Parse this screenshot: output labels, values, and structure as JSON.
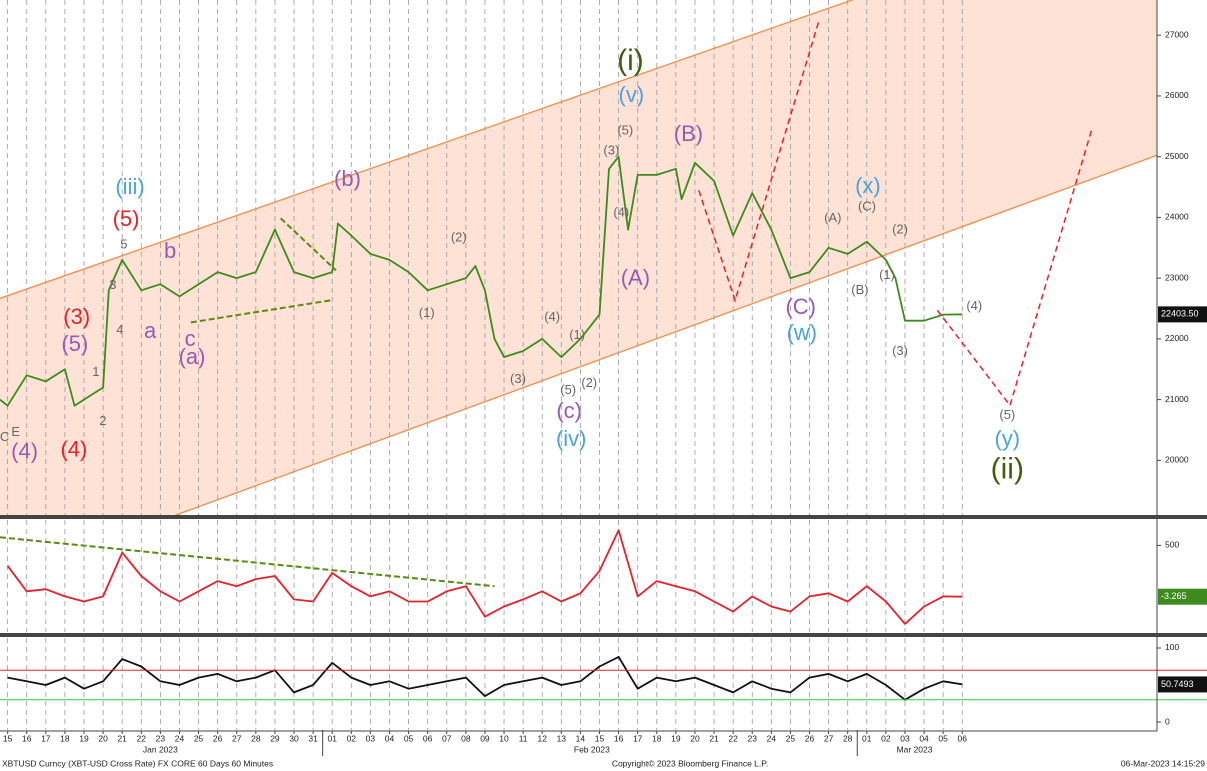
{
  "chart_data": [
    {
      "type": "line",
      "xlim": [
        -0.4,
        60.2
      ],
      "ylim": [
        19100,
        27580
      ],
      "yticks": [
        20000,
        21000,
        22000,
        23000,
        24000,
        25000,
        26000,
        27000
      ],
      "grid": true,
      "series": [
        {
          "color": "#3d8b1f",
          "x": [
            -0.4,
            0,
            1,
            2,
            3,
            3.5,
            4,
            5,
            5.3,
            6,
            7,
            8,
            9,
            10,
            11,
            12,
            13,
            14,
            15,
            16,
            17,
            17.3,
            18,
            19,
            20,
            21,
            22,
            23,
            24,
            24.5,
            25,
            25.5,
            26,
            27,
            28,
            29,
            30,
            31,
            31.5,
            32,
            32.5,
            33,
            34,
            35,
            35.3,
            36,
            37,
            38,
            39,
            40,
            41,
            42,
            43,
            44,
            45,
            46,
            46.5,
            47,
            48,
            49,
            50
          ],
          "values": [
            21000,
            20900,
            21400,
            21300,
            21500,
            20900,
            21000,
            21200,
            22800,
            23300,
            22800,
            22900,
            22700,
            22900,
            23100,
            23000,
            23100,
            23800,
            23100,
            23000,
            23100,
            23900,
            23700,
            23400,
            23300,
            23100,
            22800,
            22900,
            23000,
            23200,
            22800,
            22000,
            21700,
            21800,
            22000,
            21700,
            22000,
            22400,
            24800,
            25000,
            23800,
            24700,
            24700,
            24800,
            24300,
            24900,
            24600,
            23700,
            24400,
            23800,
            23000,
            23100,
            23500,
            23400,
            23600,
            23300,
            23000,
            22300,
            22300,
            22400,
            22403.5
          ]
        }
      ],
      "last_label": {
        "value": 22403.5,
        "label": "22403.50"
      },
      "channel": {
        "color": "#f28c4a",
        "fill": "#fde2d5",
        "lines": [
          {
            "x": [
              -0.4,
              44.2
            ],
            "y": [
              22667,
              27577
            ]
          },
          {
            "x": [
              8.77,
              60.2
            ],
            "y": [
              19094,
              25023
            ]
          }
        ]
      },
      "projections": [
        {
          "color": "#e8202a",
          "x": [
            36.2,
            38.1,
            42.5
          ],
          "y": [
            24446,
            22634,
            27247
          ]
        },
        {
          "color": "#e8202a",
          "x": [
            48.7,
            52.5,
            56.8
          ],
          "y": [
            22470,
            20904,
            25468
          ]
        }
      ],
      "trend_lines": [
        {
          "color": "#5a8a10",
          "x": [
            9.6,
            16.9
          ],
          "y": [
            22272,
            22634
          ]
        },
        {
          "color": "#5a8a10",
          "x": [
            14.3,
            17.2
          ],
          "y": [
            23985,
            23128
          ]
        }
      ],
      "annotations": [
        {
          "text": "(iii)",
          "x": 6.41,
          "y": 24480,
          "color": "#4aa3df"
        },
        {
          "text": "(5)",
          "x": 6.2,
          "y": 23953,
          "color": "#e8202a"
        },
        {
          "text": "5",
          "x": 6.09,
          "y": 23541,
          "color": "#666666"
        },
        {
          "text": "3",
          "x": 5.51,
          "y": 22882,
          "color": "#666666"
        },
        {
          "text": "4",
          "x": 5.88,
          "y": 22140,
          "color": "#666666"
        },
        {
          "text": "1",
          "x": 4.62,
          "y": 21448,
          "color": "#666666"
        },
        {
          "text": "2",
          "x": 4.99,
          "y": 20641,
          "color": "#666666"
        },
        {
          "text": "(3)",
          "x": 3.62,
          "y": 22338,
          "color": "#e8202a"
        },
        {
          "text": "(5)",
          "x": 3.52,
          "y": 21893,
          "color": "#9b59b6"
        },
        {
          "text": "(4)",
          "x": 3.47,
          "y": 20163,
          "color": "#e8202a"
        },
        {
          "text": "(4)",
          "x": 0.89,
          "y": 20130,
          "color": "#9b59b6"
        },
        {
          "text": "C",
          "x": -0.16,
          "y": 20377,
          "color": "#666666"
        },
        {
          "text": "E",
          "x": 0.42,
          "y": 20460,
          "color": "#666666"
        },
        {
          "text": "b",
          "x": 8.51,
          "y": 23425,
          "color": "#9b59b6"
        },
        {
          "text": "a",
          "x": 7.46,
          "y": 22107,
          "color": "#9b59b6"
        },
        {
          "text": "c",
          "x": 9.56,
          "y": 21976,
          "color": "#9b59b6"
        },
        {
          "text": "(a)",
          "x": 9.66,
          "y": 21679,
          "color": "#9b59b6"
        },
        {
          "text": "(b)",
          "x": 17.8,
          "y": 24611,
          "color": "#9b59b6"
        },
        {
          "text": "(1)",
          "x": 21.95,
          "y": 22420,
          "color": "#666666"
        },
        {
          "text": "(2)",
          "x": 23.63,
          "y": 23656,
          "color": "#666666"
        },
        {
          "text": "(3)",
          "x": 26.73,
          "y": 21333,
          "color": "#666666"
        },
        {
          "text": "(4)",
          "x": 28.52,
          "y": 22354,
          "color": "#666666"
        },
        {
          "text": "(1)",
          "x": 29.83,
          "y": 22058,
          "color": "#666666"
        },
        {
          "text": "(5)",
          "x": 29.36,
          "y": 21152,
          "color": "#666666"
        },
        {
          "text": "(2)",
          "x": 30.46,
          "y": 21267,
          "color": "#666666"
        },
        {
          "text": "(c)",
          "x": 29.41,
          "y": 20789,
          "color": "#9b59b6"
        },
        {
          "text": "(iv)",
          "x": 29.52,
          "y": 20328,
          "color": "#4aa3df"
        },
        {
          "text": "(3)",
          "x": 31.62,
          "y": 25089,
          "color": "#666666"
        },
        {
          "text": "(4)",
          "x": 32.14,
          "y": 24068,
          "color": "#666666"
        },
        {
          "text": "(5)",
          "x": 32.35,
          "y": 25418,
          "color": "#666666"
        },
        {
          "text": "(v)",
          "x": 32.67,
          "y": 25995,
          "color": "#4aa3df"
        },
        {
          "text": "(i)",
          "x": 32.62,
          "y": 26555,
          "color": "#3f5f10"
        },
        {
          "text": "(A)",
          "x": 32.88,
          "y": 22980,
          "color": "#9b59b6"
        },
        {
          "text": "(B)",
          "x": 35.66,
          "y": 25353,
          "color": "#9b59b6"
        },
        {
          "text": "(C)",
          "x": 41.54,
          "y": 22503,
          "color": "#9b59b6"
        },
        {
          "text": "(w)",
          "x": 41.6,
          "y": 22074,
          "color": "#4aa3df"
        },
        {
          "text": "(A)",
          "x": 43.22,
          "y": 23985,
          "color": "#666666"
        },
        {
          "text": "(B)",
          "x": 44.64,
          "y": 22799,
          "color": "#666666"
        },
        {
          "text": "(x)",
          "x": 45.06,
          "y": 24496,
          "color": "#4aa3df"
        },
        {
          "text": "(C)",
          "x": 45.01,
          "y": 24167,
          "color": "#666666"
        },
        {
          "text": "(2)",
          "x": 46.74,
          "y": 23788,
          "color": "#666666"
        },
        {
          "text": "(1)",
          "x": 46.06,
          "y": 23046,
          "color": "#666666"
        },
        {
          "text": "(3)",
          "x": 46.74,
          "y": 21794,
          "color": "#666666"
        },
        {
          "text": "(4)",
          "x": 50.63,
          "y": 22536,
          "color": "#666666"
        },
        {
          "text": "(5)",
          "x": 52.36,
          "y": 20740,
          "color": "#666666"
        },
        {
          "text": "(y)",
          "x": 52.36,
          "y": 20328,
          "color": "#4aa3df"
        },
        {
          "text": "(ii)",
          "x": 52.36,
          "y": 19834,
          "color": "#3f5f10"
        }
      ]
    },
    {
      "type": "line",
      "xlim": [
        -0.4,
        60.2
      ],
      "ylim": [
        -350,
        750
      ],
      "yticks": [
        500
      ],
      "series": [
        {
          "color": "#e8202a",
          "x": [
            0,
            1,
            2,
            3,
            4,
            5,
            6,
            7,
            8,
            9,
            10,
            11,
            12,
            13,
            14,
            15,
            16,
            17,
            18,
            19,
            20,
            21,
            22,
            23,
            24,
            25,
            26,
            27,
            28,
            29,
            30,
            31,
            32,
            33,
            34,
            35,
            36,
            37,
            38,
            39,
            40,
            41,
            42,
            43,
            44,
            45,
            46,
            47,
            48,
            49,
            50
          ],
          "values": [
            300,
            50,
            70,
            0,
            -50,
            0,
            430,
            200,
            50,
            -50,
            50,
            150,
            100,
            170,
            200,
            -30,
            -50,
            230,
            100,
            0,
            50,
            -50,
            -50,
            50,
            100,
            -200,
            -100,
            -30,
            50,
            -50,
            30,
            250,
            650,
            0,
            150,
            100,
            50,
            -50,
            -150,
            0,
            -100,
            -150,
            0,
            30,
            -50,
            100,
            -50,
            -270,
            -100,
            0,
            -3.265
          ]
        }
      ],
      "last_label": -3.265,
      "trend_lines": [
        {
          "color": "#5a8a10",
          "x": [
            -0.4,
            25.5
          ],
          "y": [
            580,
            100
          ]
        }
      ]
    },
    {
      "type": "line",
      "xlim": [
        -0.4,
        60.2
      ],
      "ylim": [
        -10.8,
        113.5
      ],
      "yticks": [
        0,
        100
      ],
      "levels": [
        {
          "value": 70,
          "color": "#e8202a"
        },
        {
          "value": 30,
          "color": "#2ecc40"
        }
      ],
      "series": [
        {
          "color": "#111111",
          "x": [
            0,
            1,
            2,
            3,
            4,
            5,
            6,
            7,
            8,
            9,
            10,
            11,
            12,
            13,
            14,
            15,
            16,
            17,
            18,
            19,
            20,
            21,
            22,
            23,
            24,
            25,
            26,
            27,
            28,
            29,
            30,
            31,
            32,
            33,
            34,
            35,
            36,
            37,
            38,
            39,
            40,
            41,
            42,
            43,
            44,
            45,
            46,
            47,
            48,
            49,
            50
          ],
          "values": [
            60,
            55,
            50,
            60,
            45,
            55,
            85,
            75,
            55,
            50,
            60,
            65,
            55,
            60,
            70,
            40,
            50,
            80,
            60,
            50,
            55,
            45,
            50,
            55,
            60,
            35,
            50,
            55,
            60,
            50,
            55,
            75,
            88,
            45,
            60,
            55,
            60,
            50,
            40,
            55,
            45,
            40,
            60,
            65,
            55,
            65,
            50,
            30,
            45,
            55,
            50.7493
          ]
        }
      ],
      "last_label": 50.7493,
      "xticks": [
        {
          "value": 0,
          "label": "15"
        },
        {
          "value": 1,
          "label": "16"
        },
        {
          "value": 2,
          "label": "17"
        },
        {
          "value": 3,
          "label": "18"
        },
        {
          "value": 4,
          "label": "19"
        },
        {
          "value": 5,
          "label": "20"
        },
        {
          "value": 6,
          "label": "21"
        },
        {
          "value": 7,
          "label": "22"
        },
        {
          "value": 8,
          "label": "23"
        },
        {
          "value": 9,
          "label": "24"
        },
        {
          "value": 10,
          "label": "25"
        },
        {
          "value": 11,
          "label": "26"
        },
        {
          "value": 12,
          "label": "27"
        },
        {
          "value": 13,
          "label": "28"
        },
        {
          "value": 14,
          "label": "29"
        },
        {
          "value": 15,
          "label": "30"
        },
        {
          "value": 16,
          "label": "31"
        },
        {
          "value": 17,
          "label": "01"
        },
        {
          "value": 18,
          "label": "02"
        },
        {
          "value": 19,
          "label": "03"
        },
        {
          "value": 20,
          "label": "04"
        },
        {
          "value": 21,
          "label": "05"
        },
        {
          "value": 22,
          "label": "06"
        },
        {
          "value": 23,
          "label": "07"
        },
        {
          "value": 24,
          "label": "08"
        },
        {
          "value": 25,
          "label": "09"
        },
        {
          "value": 26,
          "label": "10"
        },
        {
          "value": 27,
          "label": "11"
        },
        {
          "value": 28,
          "label": "12"
        },
        {
          "value": 29,
          "label": "13"
        },
        {
          "value": 30,
          "label": "14"
        },
        {
          "value": 31,
          "label": "15"
        },
        {
          "value": 32,
          "label": "16"
        },
        {
          "value": 33,
          "label": "17"
        },
        {
          "value": 34,
          "label": "18"
        },
        {
          "value": 35,
          "label": "19"
        },
        {
          "value": 36,
          "label": "20"
        },
        {
          "value": 37,
          "label": "21"
        },
        {
          "value": 38,
          "label": "22"
        },
        {
          "value": 39,
          "label": "23"
        },
        {
          "value": 40,
          "label": "24"
        },
        {
          "value": 41,
          "label": "25"
        },
        {
          "value": 42,
          "label": "26"
        },
        {
          "value": 43,
          "label": "27"
        },
        {
          "value": 44,
          "label": "28"
        },
        {
          "value": 45,
          "label": "01"
        },
        {
          "value": 46,
          "label": "02"
        },
        {
          "value": 47,
          "label": "03"
        },
        {
          "value": 48,
          "label": "04"
        },
        {
          "value": 49,
          "label": "05"
        },
        {
          "value": 50,
          "label": "06"
        }
      ],
      "month_labels": [
        {
          "value": 8,
          "label": "Jan 2023"
        },
        {
          "value": 30.6,
          "label": "Feb 2023"
        },
        {
          "value": 47.5,
          "label": "Mar 2023"
        }
      ],
      "month_breaks": [
        16.5,
        44.5
      ]
    }
  ],
  "footer": {
    "left": "XBTUSD Curncy (XBT-USD Cross Rate) FX CORE 60 Days 60 Minutes",
    "center": "Copyright© 2023 Bloomberg Finance L.P.",
    "right": "06-Mar-2023 14:15:29"
  }
}
